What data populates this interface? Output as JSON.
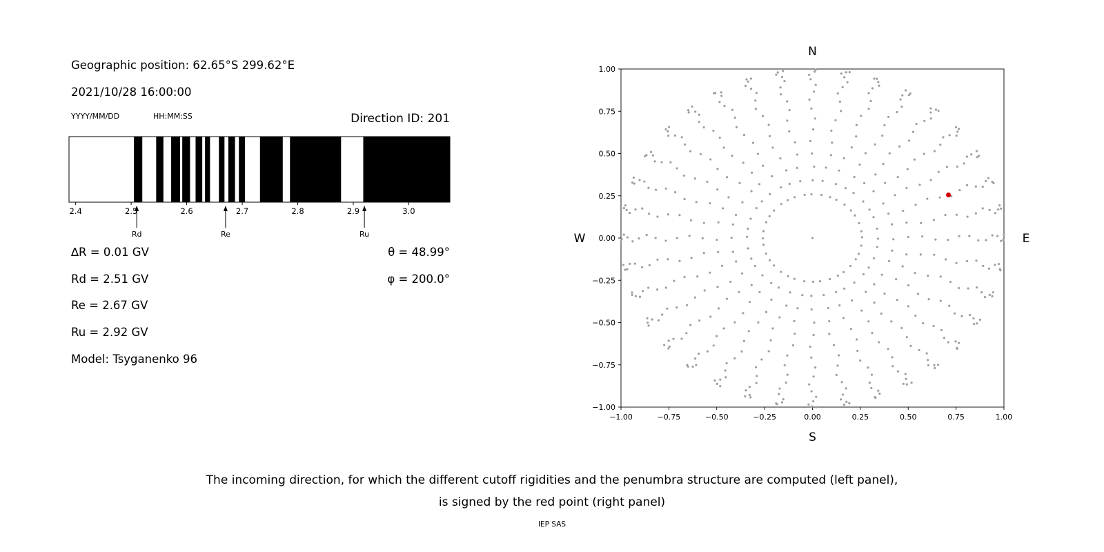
{
  "left_panel": {
    "geo_position": "Geographic position: 62.65°S 299.62°E",
    "datetime": "2021/10/28 16:00:00",
    "date_format_label": "YYYY/MM/DD",
    "time_format_label": "HH:MM:SS",
    "direction_id_label": "Direction ID: 201",
    "delta_r": "∆R = 0.01 GV",
    "rd": "Rd = 2.51 GV",
    "re": "Re = 2.67 GV",
    "ru": "Ru = 2.92 GV",
    "model": "Model: Tsyganenko 96",
    "theta": "θ = 48.99°",
    "phi": "φ = 200.0°"
  },
  "caption": {
    "line1": "The incoming direction, for which the different cutoff rigidities and the penumbra structure are computed (left panel),",
    "line2": "is signed by the red point (right panel)",
    "credit": "IEP SAS"
  },
  "chart_data": [
    {
      "type": "bar",
      "name": "penumbra-structure",
      "description": "Cosmic-ray penumbra: black bands = allowed rigidity intervals (GV), white = forbidden",
      "xlim": [
        2.388,
        3.074
      ],
      "xticks": [
        2.4,
        2.5,
        2.6,
        2.7,
        2.8,
        2.9,
        3.0
      ],
      "band_color": "#000000",
      "allowed_intervals": [
        [
          2.505,
          2.52
        ],
        [
          2.545,
          2.558
        ],
        [
          2.572,
          2.588
        ],
        [
          2.592,
          2.606
        ],
        [
          2.616,
          2.628
        ],
        [
          2.633,
          2.642
        ],
        [
          2.658,
          2.668
        ],
        [
          2.675,
          2.687
        ],
        [
          2.694,
          2.705
        ],
        [
          2.732,
          2.773
        ],
        [
          2.786,
          2.878
        ],
        [
          2.918,
          3.074
        ]
      ],
      "markers": [
        {
          "name": "Rd",
          "value_gv": 2.51
        },
        {
          "name": "Re",
          "value_gv": 2.67
        },
        {
          "name": "Ru",
          "value_gv": 2.92
        }
      ],
      "delta_r_gv": 0.01,
      "model": "Tsyganenko 96"
    },
    {
      "type": "scatter",
      "name": "incoming-direction-sky-map",
      "xlim": [
        -1.0,
        1.0
      ],
      "ylim": [
        -1.0,
        1.0
      ],
      "xticks": [
        -1.0,
        -0.75,
        -0.5,
        -0.25,
        0.0,
        0.25,
        0.5,
        0.75,
        1.0
      ],
      "yticks": [
        -1.0,
        -0.75,
        -0.5,
        -0.25,
        0.0,
        0.25,
        0.5,
        0.75,
        1.0
      ],
      "compass": {
        "top": "N",
        "bottom": "S",
        "left": "W",
        "right": "E"
      },
      "grid_dots": {
        "color": "#9e9e9e",
        "dot_radius_px": 1.6,
        "azimuth_step_deg": 10,
        "zenith_start_deg": 15,
        "zenith_step_deg": 5,
        "zenith_end_deg": 90,
        "radius_rule": "sin(zenith)",
        "include_center": true,
        "jitter_deg": 1.2
      },
      "red_point": {
        "x": 0.71,
        "y": 0.255,
        "color": "#d40000",
        "theta_deg": 48.99,
        "phi_deg": 200.0
      }
    }
  ]
}
